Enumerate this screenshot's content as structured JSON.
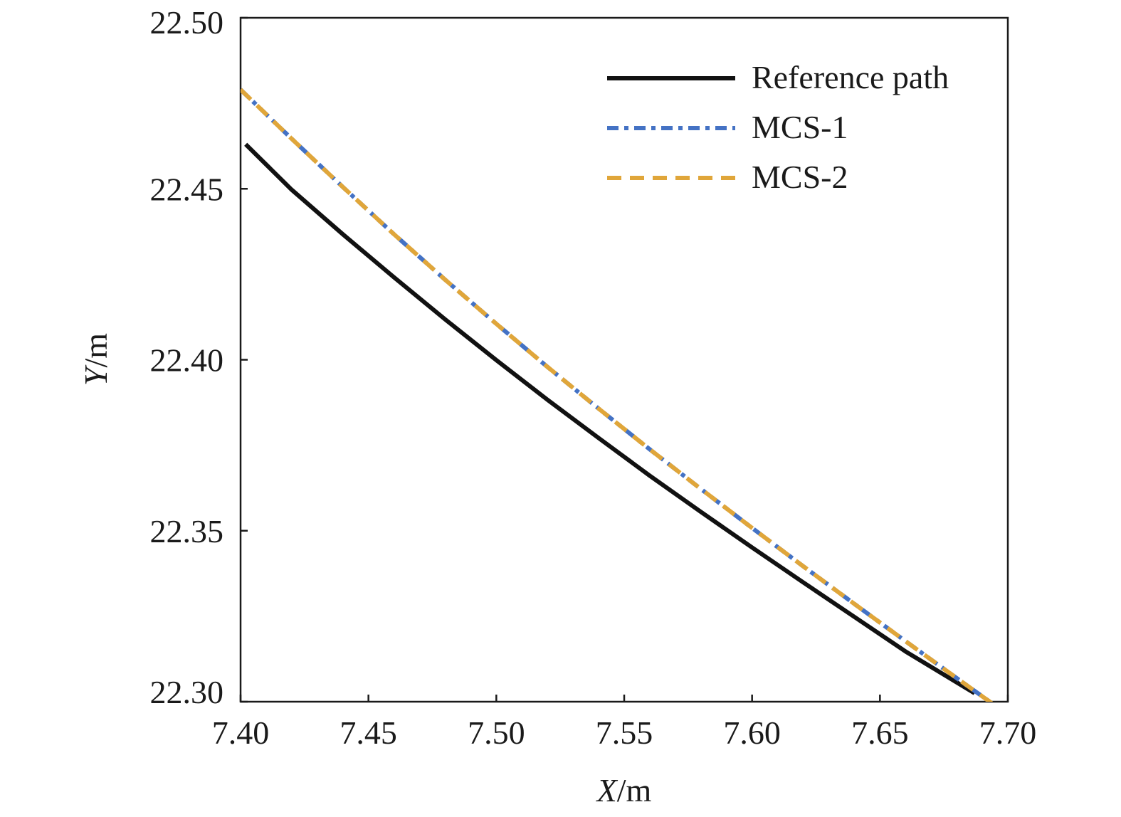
{
  "chart_data": {
    "type": "line",
    "xlabel": {
      "var": "X",
      "unit": "/m"
    },
    "ylabel": {
      "var": "Y",
      "unit": "/m"
    },
    "xlim": [
      7.4,
      7.7
    ],
    "ylim": [
      22.3,
      22.5
    ],
    "xticks": [
      "7.40",
      "7.45",
      "7.50",
      "7.55",
      "7.60",
      "7.65",
      "7.70"
    ],
    "yticks": [
      "22.30",
      "22.35",
      "22.40",
      "22.45",
      "22.50"
    ],
    "grid": false,
    "legend_position": "top-right",
    "series": [
      {
        "name": "Reference path",
        "color": "#111111",
        "style": "solid",
        "x": [
          7.402,
          7.42,
          7.44,
          7.46,
          7.48,
          7.5,
          7.52,
          7.54,
          7.56,
          7.58,
          7.6,
          7.62,
          7.64,
          7.66,
          7.687
        ],
        "y": [
          22.463,
          22.4497,
          22.4367,
          22.4241,
          22.4118,
          22.3999,
          22.3883,
          22.3771,
          22.3661,
          22.3555,
          22.3451,
          22.3349,
          22.3248,
          22.3147,
          22.3025
        ]
      },
      {
        "name": "MCS-1",
        "color": "#4472c4",
        "style": "dash-dot",
        "x": [
          7.4,
          7.42,
          7.44,
          7.46,
          7.48,
          7.5,
          7.52,
          7.54,
          7.56,
          7.58,
          7.6,
          7.62,
          7.64,
          7.66,
          7.68,
          7.695
        ],
        "y": [
          22.479,
          22.4646,
          22.4505,
          22.4367,
          22.4234,
          22.4105,
          22.3979,
          22.3857,
          22.3738,
          22.3622,
          22.3508,
          22.3396,
          22.3286,
          22.3177,
          22.3069,
          22.2989
        ]
      },
      {
        "name": "MCS-2",
        "color": "#e0a63a",
        "style": "dashed",
        "x": [
          7.4,
          7.42,
          7.44,
          7.46,
          7.48,
          7.5,
          7.52,
          7.54,
          7.56,
          7.58,
          7.6,
          7.62,
          7.64,
          7.66,
          7.68,
          7.695
        ],
        "y": [
          22.479,
          22.4646,
          22.4505,
          22.4367,
          22.4234,
          22.4105,
          22.3979,
          22.3857,
          22.3738,
          22.3622,
          22.3508,
          22.3396,
          22.3286,
          22.3177,
          22.3069,
          22.2989
        ]
      }
    ]
  }
}
